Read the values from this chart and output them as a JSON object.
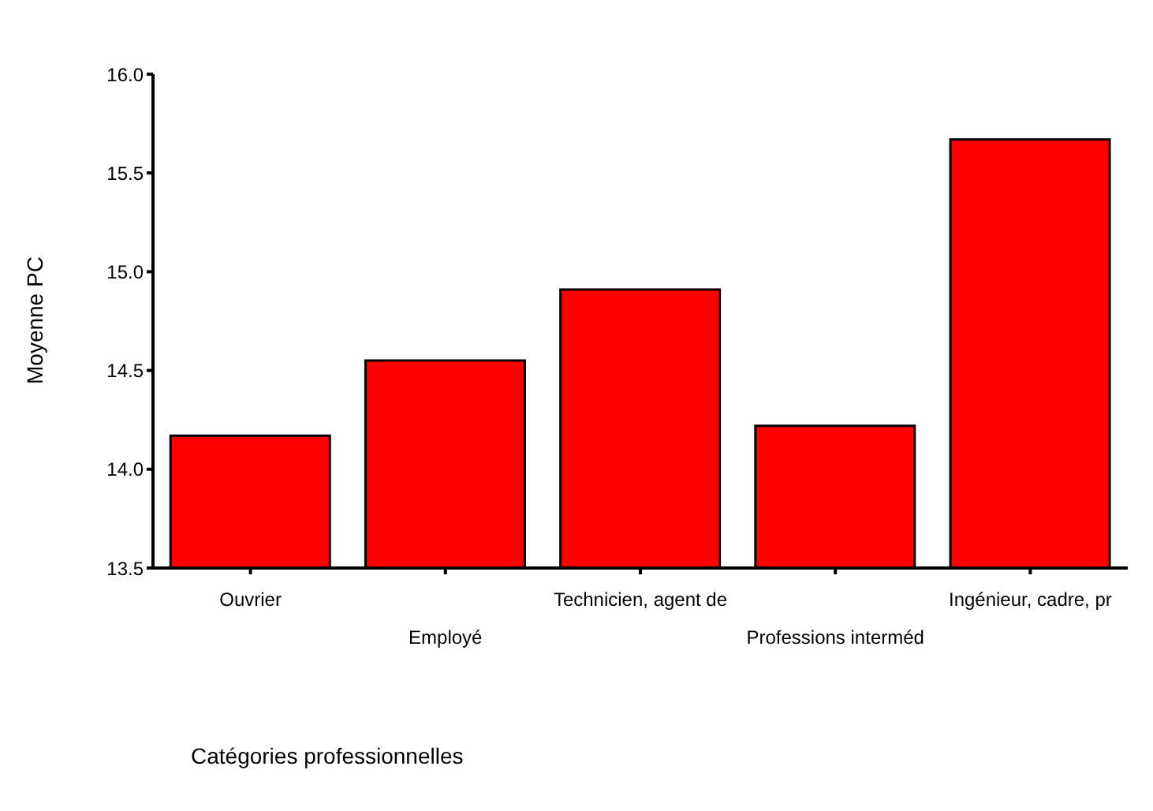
{
  "chart_data": {
    "type": "bar",
    "xlabel": "Catégories professionnelles",
    "ylabel": "Moyenne PC",
    "categories": [
      "Ouvrier",
      "Employé",
      "Technicien, agent de",
      "Professions interméd",
      "Ingénieur, cadre, pr"
    ],
    "values": [
      14.17,
      14.55,
      14.91,
      14.22,
      15.67
    ],
    "color": "#ff0000",
    "ylim": [
      13.5,
      16.0
    ],
    "yticks": [
      13.5,
      {
        "value": 14,
        "label": "14.0"
      },
      14.5,
      {
        "value": 15,
        "label": "15.0"
      },
      15.5,
      {
        "value": 16,
        "label": "16.0"
      }
    ],
    "grid": false,
    "legend": false
  }
}
